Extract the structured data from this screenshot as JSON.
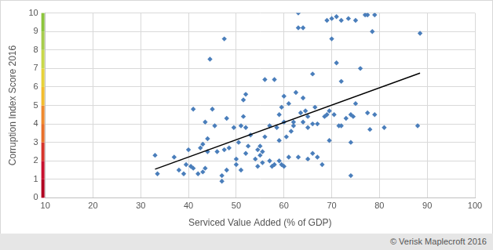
{
  "chart_data": {
    "type": "scatter",
    "x_label": "Serviced Value Added (% of GDP)",
    "y_label": "Corruption Index Score 2016",
    "source": "© Verisk Maplecroft 2016",
    "xlim": [
      10,
      100
    ],
    "xticks": [
      10,
      20,
      30,
      40,
      50,
      60,
      70,
      80,
      90,
      100
    ],
    "ylim": [
      0,
      10
    ],
    "yticks": [
      0,
      1,
      2,
      3,
      4,
      5,
      6,
      7,
      8,
      9,
      10
    ],
    "grid": true,
    "legend": false,
    "series": [
      {
        "type": "scatter",
        "color": "#4a7ebb",
        "marker": "diamond",
        "x": [
          33,
          33.5,
          37,
          38,
          39,
          39.5,
          40,
          40.5,
          41,
          41,
          42,
          42.5,
          43,
          43,
          43.5,
          43.5,
          44,
          44,
          44.5,
          45,
          45.5,
          46,
          47,
          47,
          47.5,
          47.5,
          48,
          48,
          48.5,
          49.5,
          50,
          50,
          50.5,
          51,
          51,
          51.5,
          51.5,
          52,
          52,
          52,
          52.5,
          53,
          54,
          54.5,
          54.5,
          55,
          55,
          55.5,
          55.5,
          56,
          56,
          57,
          57,
          57.5,
          58,
          58,
          58.5,
          59,
          59,
          59,
          59.5,
          59.5,
          60,
          60,
          60,
          60.5,
          61,
          61,
          61.5,
          62,
          62,
          62.5,
          63,
          63,
          63,
          63.5,
          64,
          64,
          64,
          64.5,
          65,
          65,
          65,
          66,
          66,
          66.5,
          66,
          67,
          67,
          68,
          68.5,
          69,
          69,
          69.5,
          69.5,
          70,
          70,
          70.5,
          71,
          71,
          71.5,
          72,
          72,
          72,
          73,
          73.5,
          74,
          74,
          74,
          74.5,
          75,
          75,
          76,
          77,
          77.5,
          77.5,
          78,
          78.5,
          79,
          79,
          81,
          88,
          88.5
        ],
        "values": [
          2.3,
          1.3,
          2.2,
          1.5,
          1.3,
          1.8,
          2.6,
          1.7,
          1.6,
          4.8,
          1.3,
          2.7,
          2.9,
          1.4,
          4.1,
          1.6,
          2.5,
          3.2,
          7.5,
          4.8,
          3.9,
          2.5,
          0.9,
          1.2,
          8.6,
          2.6,
          4.3,
          1.5,
          2.7,
          3.8,
          2.1,
          1.8,
          3.0,
          1.5,
          3.9,
          4.4,
          5.3,
          3.8,
          2.4,
          5.6,
          2.8,
          3.4,
          2.1,
          1.7,
          2.6,
          2.8,
          2.3,
          1.9,
          2.5,
          3.3,
          6.4,
          3.9,
          2.0,
          1.7,
          1.8,
          6.4,
          3.8,
          4.5,
          3.1,
          2.0,
          4.9,
          1.8,
          5.5,
          4.1,
          1.7,
          3.3,
          2.2,
          5.1,
          3.6,
          4.1,
          3.9,
          5.7,
          10,
          9.2,
          2.2,
          4.6,
          9.2,
          4.1,
          5.4,
          4.7,
          4.4,
          3.8,
          2.1,
          2.4,
          6.7,
          4.9,
          4.0,
          2.2,
          4.0,
          1.8,
          4.4,
          4.5,
          9.6,
          3.1,
          4.7,
          8.6,
          9.7,
          4.5,
          7.3,
          9.8,
          3.9,
          6.3,
          9.6,
          3.9,
          4.3,
          9.7,
          3.0,
          1.2,
          4.5,
          4.4,
          5.1,
          9.6,
          7.0,
          9.9,
          4.6,
          9.9,
          3.7,
          9.0,
          9.9,
          4.5,
          3.8,
          3.9,
          8.9
        ]
      },
      {
        "type": "line",
        "color": "#000000",
        "line_style": "solid",
        "x": [
          33,
          88.5
        ],
        "values": [
          1.55,
          6.75
        ]
      }
    ]
  }
}
